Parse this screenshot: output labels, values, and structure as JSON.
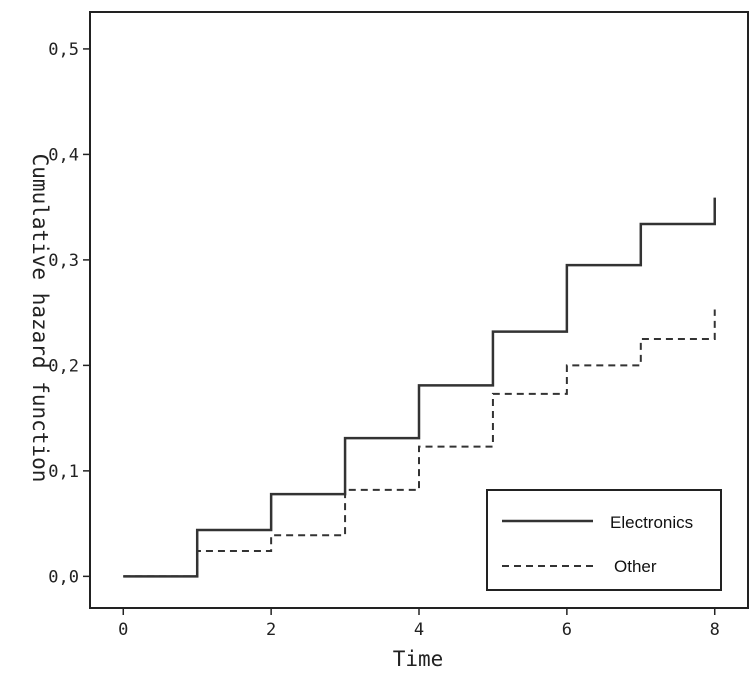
{
  "chart_data": {
    "type": "line",
    "step": "post",
    "title": "",
    "xlabel": "Time",
    "ylabel": "Cumulative hazard function",
    "xlim": [
      -0.45,
      8.45
    ],
    "ylim": [
      -0.03,
      0.535
    ],
    "xticks": [
      0,
      2,
      4,
      6,
      8
    ],
    "xtick_labels": [
      "0",
      "2",
      "4",
      "6",
      "8"
    ],
    "yticks": [
      0.0,
      0.1,
      0.2,
      0.3,
      0.4,
      0.5
    ],
    "ytick_labels": [
      "0,0",
      "0,1",
      "0,2",
      "0,3",
      "0,4",
      "0,5"
    ],
    "grid": false,
    "legend_position": "bottom-right",
    "series": [
      {
        "name": "Electronics",
        "line_style": "solid",
        "color": "#333333",
        "x": [
          0,
          1,
          2,
          3,
          4,
          5,
          6,
          7,
          8,
          8
        ],
        "y": [
          0.0,
          0.044,
          0.078,
          0.131,
          0.181,
          0.232,
          0.295,
          0.334,
          0.334,
          0.359
        ]
      },
      {
        "name": "Other",
        "line_style": "dashed",
        "color": "#333333",
        "x": [
          0,
          1,
          2,
          3,
          4,
          5,
          6,
          7,
          8,
          8
        ],
        "y": [
          0.0,
          0.024,
          0.039,
          0.082,
          0.123,
          0.173,
          0.2,
          0.225,
          0.225,
          0.253
        ]
      }
    ]
  }
}
